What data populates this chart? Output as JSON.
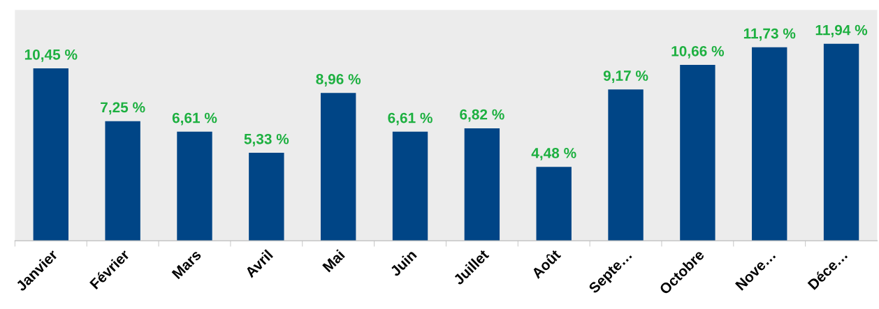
{
  "chart_data": {
    "type": "bar",
    "categories": [
      "Janvier",
      "Février",
      "Mars",
      "Avril",
      "Mai",
      "Juin",
      "Juillet",
      "Août",
      "Septe…",
      "Octobre",
      "Nove…",
      "Déce…"
    ],
    "values": [
      10.45,
      7.25,
      6.61,
      5.33,
      8.96,
      6.61,
      6.82,
      4.48,
      9.17,
      10.66,
      11.73,
      11.94
    ],
    "value_labels": [
      "10,45 %",
      "7,25 %",
      "6,61 %",
      "5,33 %",
      "8,96 %",
      "6,61 %",
      "6,82 %",
      "4,48 %",
      "9,17 %",
      "10,66 %",
      "11,73 %",
      "11,94 %"
    ],
    "color": "#004586",
    "ylim": [
      0,
      14
    ],
    "tick_labels": "x",
    "grid": false,
    "legend": false
  }
}
